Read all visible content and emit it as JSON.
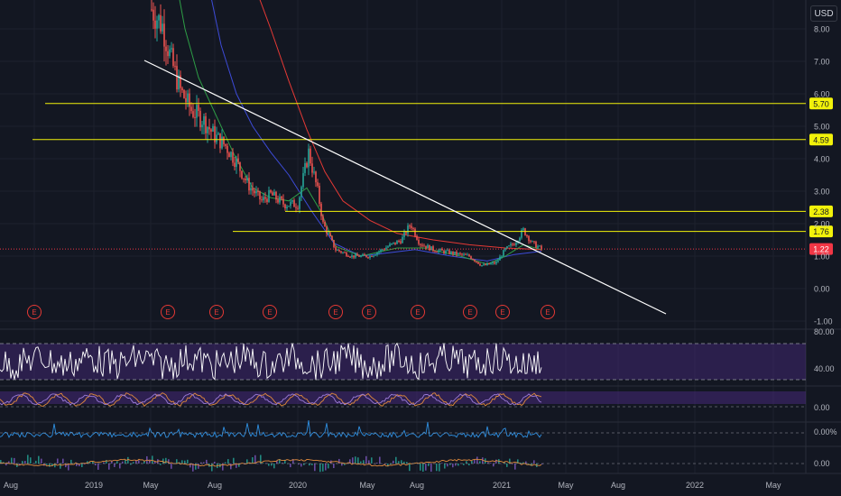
{
  "currency": "USD",
  "colors": {
    "background": "#131722",
    "grid": "#1e222d",
    "text": "#b2b5be",
    "up_candle": "#26a69a",
    "down_candle": "#ef5350",
    "horizontal_level": "#f2f20a",
    "trendline": "#ffffff",
    "ma_red": "#e53935",
    "ma_blue": "#3d4bd8",
    "ma_green": "#2e9e46",
    "earnings_marker": "#e53935",
    "rsi_band": "#4a2a80",
    "indicator_orange": "#e08a3c",
    "indicator_purple": "#9c7bd8",
    "indicator_blue": "#2f8fe0",
    "last_price_bg": "#f23645"
  },
  "price_axis_labels": [
    "8.00",
    "7.00",
    "6.00",
    "5.00",
    "4.00",
    "3.00",
    "2.00",
    "1.00",
    "0.00",
    "-1.00"
  ],
  "price_axis_values": [
    8,
    7,
    6,
    5,
    4,
    3,
    2,
    1,
    0,
    -1
  ],
  "levels": [
    {
      "label": "5.70",
      "value": 5.7
    },
    {
      "label": "4.59",
      "value": 4.59
    },
    {
      "label": "2.38",
      "value": 2.38
    },
    {
      "label": "1.76",
      "value": 1.76
    }
  ],
  "last_price": {
    "label": "1.22",
    "value": 1.22
  },
  "earnings_marker_label": "E",
  "earnings_count": 10,
  "time_axis_labels": [
    "Aug",
    "2019",
    "May",
    "Aug",
    "2020",
    "May",
    "Aug",
    "2021",
    "May",
    "Aug",
    "2022",
    "May"
  ],
  "sub_panels": [
    {
      "name": "rsi-panel",
      "labels": [
        "80.00",
        "40.00"
      ]
    },
    {
      "name": "oscillator-panel",
      "labels": [
        "0.00"
      ]
    },
    {
      "name": "percent-panel",
      "labels": [
        "0.00%"
      ]
    },
    {
      "name": "macd-panel",
      "labels": [
        "0.00"
      ]
    }
  ]
}
